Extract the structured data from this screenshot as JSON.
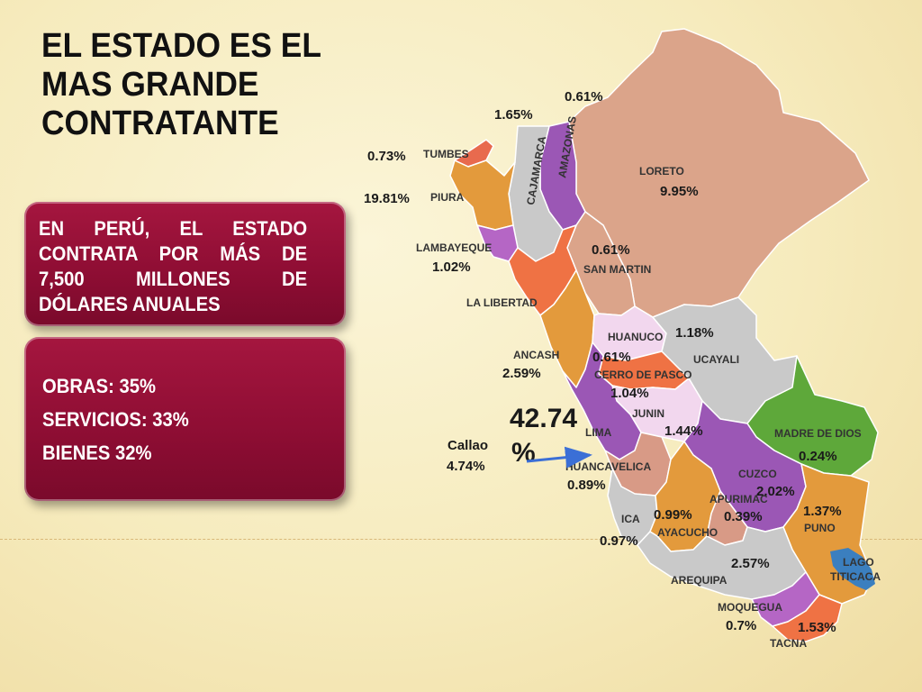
{
  "slide": {
    "title_lines": [
      "EL ESTADO ES EL",
      "MAS GRANDE",
      "CONTRATANTE"
    ],
    "info_text": "EN PERÚ, EL ESTADO CONTRATA POR MÁS DE 7,500 MILLONES DE DÓLARES ANUALES",
    "breakdown": [
      "OBRAS: 35%",
      "SERVICIOS: 33%",
      "BIENES 32%"
    ]
  },
  "map": {
    "departments": [
      {
        "name": "TUMBES",
        "pct": "0.73%",
        "color": "#e86a4e"
      },
      {
        "name": "PIURA",
        "pct": "19.81%",
        "color": "#e39a3c"
      },
      {
        "name": "LAMBAYEQUE",
        "pct": "1.02%",
        "color": "#b566c5"
      },
      {
        "name": "CAJAMARCA",
        "pct": "1.65%",
        "color": "#c9c9c9"
      },
      {
        "name": "AMAZONAS",
        "pct": "0.61%",
        "color": "#9b57b5"
      },
      {
        "name": "LORETO",
        "pct": "9.95%",
        "color": "#5ea83a"
      },
      {
        "name": "SAN MARTIN",
        "pct": "0.61%",
        "color": "#dba48a"
      },
      {
        "name": "LA LIBERTAD",
        "pct": "",
        "color": "#ef7244"
      },
      {
        "name": "ANCASH",
        "pct": "2.59%",
        "color": "#e39a3c"
      },
      {
        "name": "HUANUCO",
        "pct": "0.61%",
        "color": "#f2d7ee"
      },
      {
        "name": "UCAYALI",
        "pct": "1.18%",
        "color": "#c9c9c9"
      },
      {
        "name": "CERRO DE PASCO",
        "pct": "1.04%",
        "color": "#ef7244"
      },
      {
        "name": "JUNIN",
        "pct": "1.44%",
        "color": "#f2d7ee"
      },
      {
        "name": "LIMA",
        "pct": "42.74%",
        "color": "#9b57b5"
      },
      {
        "name": "MADRE DE DIOS",
        "pct": "0.24%",
        "color": "#5ea83a"
      },
      {
        "name": "HUANCAVELICA",
        "pct": "0.89%",
        "color": "#d89a86"
      },
      {
        "name": "CUZCO",
        "pct": "2.02%",
        "color": "#9b57b5"
      },
      {
        "name": "ICA",
        "pct": "0.97%",
        "color": "#c9c9c9"
      },
      {
        "name": "AYACUCHO",
        "pct": "0.99%",
        "color": "#e39a3c"
      },
      {
        "name": "APURIMAC",
        "pct": "0.39%",
        "color": "#d89a86"
      },
      {
        "name": "PUNO",
        "pct": "1.37%",
        "color": "#e39a3c"
      },
      {
        "name": "AREQUIPA",
        "pct": "2.57%",
        "color": "#c9c9c9"
      },
      {
        "name": "MOQUEGUA",
        "pct": "0.7%",
        "color": "#b566c5"
      },
      {
        "name": "TACNA",
        "pct": "1.53%",
        "color": "#ef7244"
      }
    ],
    "lake_name_lines": [
      "LAGO",
      "TITICACA"
    ],
    "lake_color": "#3b7fbf",
    "lima_big_pct_lines": [
      "42.74",
      "%"
    ],
    "callao": {
      "name": "Callao",
      "pct": "4.74%"
    },
    "arrow_color": "#3b6fd6"
  }
}
